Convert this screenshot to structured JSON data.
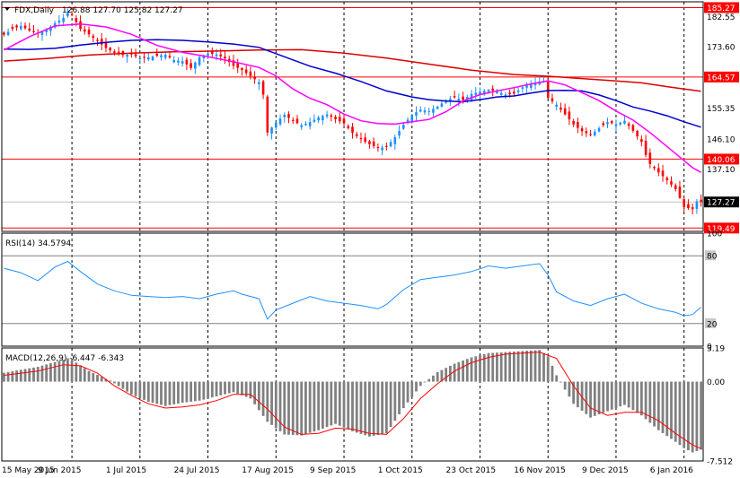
{
  "symbol_label": "FDX,Daily",
  "ohlc_label": "126.88 127.70 125.82 127.27",
  "rsi_label": "RSI(14) 34.5794",
  "macd_label": "MACD(12,26,9) -6.447 -6.343",
  "colors": {
    "up": "#1e90ff",
    "down": "#ff0000",
    "ma_fast": "#ff00ff",
    "ma_mid": "#0000cc",
    "ma_slow": "#dd0000",
    "hline": "#ff0000",
    "rsi": "#1e90ff",
    "macd_hist": "#808080",
    "macd_signal": "#ff0000",
    "grid": "#000000"
  },
  "chart_data": [
    {
      "type": "candlestick",
      "title": "FDX,Daily",
      "ylim": [
        118.5,
        187.0
      ],
      "yticks": [
        182.55,
        173.6,
        164.57,
        155.35,
        146.1,
        137.1
      ],
      "price_levels": [
        185.27,
        164.57,
        140.06,
        119.49
      ],
      "current_price": 127.27,
      "xticks": [
        "15 May 2015",
        "9 Jun 2015",
        "1 Jul 2015",
        "24 Jul 2015",
        "17 Aug 2015",
        "9 Sep 2015",
        "1 Oct 2015",
        "23 Oct 2015",
        "16 Nov 2015",
        "9 Dec 2015",
        "6 Jan 2016"
      ],
      "close_path": [
        [
          0,
          177.2
        ],
        [
          2,
          178.9
        ],
        [
          4,
          179.8
        ],
        [
          6,
          178.4
        ],
        [
          8,
          177.5
        ],
        [
          10,
          178.6
        ],
        [
          12,
          180.6
        ],
        [
          14,
          182.2
        ],
        [
          15,
          183.8
        ],
        [
          16,
          183.0
        ],
        [
          18,
          178.9
        ],
        [
          20,
          177.3
        ],
        [
          22,
          175.3
        ],
        [
          24,
          173.2
        ],
        [
          26,
          171.8
        ],
        [
          28,
          171.1
        ],
        [
          30,
          171.3
        ],
        [
          32,
          170.2
        ],
        [
          34,
          170.4
        ],
        [
          36,
          170.9
        ],
        [
          38,
          171.2
        ],
        [
          40,
          169.6
        ],
        [
          42,
          169.3
        ],
        [
          44,
          167.3
        ],
        [
          46,
          170.5
        ],
        [
          48,
          171.6
        ],
        [
          50,
          171.3
        ],
        [
          52,
          170.1
        ],
        [
          54,
          167.9
        ],
        [
          56,
          166.7
        ],
        [
          58,
          164.8
        ],
        [
          60,
          163.0
        ],
        [
          61,
          159.3
        ],
        [
          62,
          148.0
        ],
        [
          64,
          151.0
        ],
        [
          66,
          153.3
        ],
        [
          68,
          151.4
        ],
        [
          70,
          150.2
        ],
        [
          72,
          151.1
        ],
        [
          74,
          152.5
        ],
        [
          76,
          153.4
        ],
        [
          78,
          152.0
        ],
        [
          80,
          150.7
        ],
        [
          82,
          147.9
        ],
        [
          84,
          146.0
        ],
        [
          86,
          144.5
        ],
        [
          88,
          143.4
        ],
        [
          90,
          143.7
        ],
        [
          92,
          146.6
        ],
        [
          94,
          150.3
        ],
        [
          96,
          153.3
        ],
        [
          98,
          154.8
        ],
        [
          100,
          154.4
        ],
        [
          102,
          155.7
        ],
        [
          104,
          157.6
        ],
        [
          106,
          158.5
        ],
        [
          108,
          157.7
        ],
        [
          110,
          159.5
        ],
        [
          112,
          160.2
        ],
        [
          114,
          160.7
        ],
        [
          116,
          160.3
        ],
        [
          118,
          159.3
        ],
        [
          120,
          159.6
        ],
        [
          122,
          161.5
        ],
        [
          124,
          162.6
        ],
        [
          126,
          163.2
        ],
        [
          127,
          163.4
        ],
        [
          128,
          158.3
        ],
        [
          130,
          156.3
        ],
        [
          132,
          153.4
        ],
        [
          134,
          150.4
        ],
        [
          136,
          148.4
        ],
        [
          138,
          147.2
        ],
        [
          140,
          149.3
        ],
        [
          142,
          151.1
        ],
        [
          144,
          150.5
        ],
        [
          146,
          151.5
        ],
        [
          148,
          148.5
        ],
        [
          150,
          145.2
        ],
        [
          151,
          141.3
        ],
        [
          152,
          138.6
        ],
        [
          154,
          136.1
        ],
        [
          156,
          133.8
        ],
        [
          158,
          131.1
        ],
        [
          160,
          125.8
        ],
        [
          162,
          125.1
        ],
        [
          163,
          127.5
        ],
        [
          164,
          127.27
        ]
      ],
      "ma_fast_path": [
        [
          0,
          172.6
        ],
        [
          6,
          176.6
        ],
        [
          12,
          179.8
        ],
        [
          18,
          180.4
        ],
        [
          24,
          179.5
        ],
        [
          30,
          177.3
        ],
        [
          36,
          174.0
        ],
        [
          42,
          171.9
        ],
        [
          48,
          170.6
        ],
        [
          54,
          169.1
        ],
        [
          60,
          167.4
        ],
        [
          64,
          164.9
        ],
        [
          68,
          161.0
        ],
        [
          72,
          158.2
        ],
        [
          76,
          156.3
        ],
        [
          80,
          153.5
        ],
        [
          84,
          151.5
        ],
        [
          88,
          150.7
        ],
        [
          92,
          150.5
        ],
        [
          96,
          151.2
        ],
        [
          100,
          151.9
        ],
        [
          104,
          154.2
        ],
        [
          108,
          157.4
        ],
        [
          112,
          159.3
        ],
        [
          116,
          160.4
        ],
        [
          120,
          161.4
        ],
        [
          124,
          162.5
        ],
        [
          128,
          163.4
        ],
        [
          132,
          162.2
        ],
        [
          136,
          159.9
        ],
        [
          140,
          157.5
        ],
        [
          144,
          154.4
        ],
        [
          148,
          151.7
        ],
        [
          152,
          148.0
        ],
        [
          156,
          143.8
        ],
        [
          160,
          139.6
        ],
        [
          162,
          137.5
        ],
        [
          164,
          136.1
        ]
      ],
      "ma_mid_path": [
        [
          0,
          172.9
        ],
        [
          6,
          172.8
        ],
        [
          12,
          173.1
        ],
        [
          18,
          174.1
        ],
        [
          24,
          174.9
        ],
        [
          30,
          175.5
        ],
        [
          36,
          175.7
        ],
        [
          42,
          175.5
        ],
        [
          48,
          175.0
        ],
        [
          54,
          174.4
        ],
        [
          60,
          173.4
        ],
        [
          66,
          170.6
        ],
        [
          72,
          167.8
        ],
        [
          78,
          165.7
        ],
        [
          84,
          163.2
        ],
        [
          90,
          160.4
        ],
        [
          96,
          158.6
        ],
        [
          100,
          157.8
        ],
        [
          104,
          157.4
        ],
        [
          108,
          157.2
        ],
        [
          112,
          157.8
        ],
        [
          116,
          158.6
        ],
        [
          120,
          158.9
        ],
        [
          124,
          159.8
        ],
        [
          128,
          160.5
        ],
        [
          132,
          160.6
        ],
        [
          136,
          160.4
        ],
        [
          140,
          159.2
        ],
        [
          144,
          157.5
        ],
        [
          148,
          155.6
        ],
        [
          152,
          154.4
        ],
        [
          156,
          153.0
        ],
        [
          160,
          151.2
        ],
        [
          164,
          149.6
        ]
      ],
      "ma_slow_path": [
        [
          0,
          169.3
        ],
        [
          10,
          170.1
        ],
        [
          20,
          171.1
        ],
        [
          30,
          171.7
        ],
        [
          40,
          172.1
        ],
        [
          50,
          172.3
        ],
        [
          60,
          172.6
        ],
        [
          70,
          172.7
        ],
        [
          80,
          171.7
        ],
        [
          90,
          170.2
        ],
        [
          100,
          168.4
        ],
        [
          110,
          166.6
        ],
        [
          120,
          165.3
        ],
        [
          128,
          164.8
        ],
        [
          136,
          164.1
        ],
        [
          144,
          163.4
        ],
        [
          150,
          162.8
        ],
        [
          156,
          161.7
        ],
        [
          160,
          161.0
        ],
        [
          164,
          160.3
        ]
      ]
    },
    {
      "type": "line",
      "title": "RSI(14) 34.5794",
      "ylim": [
        0,
        100
      ],
      "yticks": [
        100,
        80,
        20,
        0
      ],
      "levels": [
        80,
        20
      ],
      "values_path": [
        [
          0,
          69
        ],
        [
          4,
          65
        ],
        [
          8,
          58
        ],
        [
          12,
          70
        ],
        [
          15,
          75
        ],
        [
          18,
          66
        ],
        [
          22,
          55
        ],
        [
          26,
          49
        ],
        [
          30,
          45
        ],
        [
          34,
          44
        ],
        [
          38,
          43
        ],
        [
          42,
          44
        ],
        [
          46,
          42
        ],
        [
          50,
          46
        ],
        [
          54,
          49
        ],
        [
          56,
          46
        ],
        [
          60,
          42
        ],
        [
          62,
          24
        ],
        [
          64,
          32
        ],
        [
          68,
          38
        ],
        [
          72,
          44
        ],
        [
          76,
          40
        ],
        [
          80,
          38
        ],
        [
          84,
          36
        ],
        [
          88,
          33
        ],
        [
          90,
          37
        ],
        [
          94,
          50
        ],
        [
          98,
          59
        ],
        [
          102,
          61
        ],
        [
          106,
          63
        ],
        [
          110,
          66
        ],
        [
          114,
          71
        ],
        [
          118,
          69
        ],
        [
          122,
          71
        ],
        [
          126,
          73
        ],
        [
          128,
          63
        ],
        [
          130,
          48
        ],
        [
          134,
          40
        ],
        [
          138,
          36
        ],
        [
          142,
          42
        ],
        [
          146,
          46
        ],
        [
          150,
          38
        ],
        [
          154,
          33
        ],
        [
          158,
          30
        ],
        [
          160,
          27
        ],
        [
          162,
          28
        ],
        [
          164,
          34.58
        ]
      ]
    },
    {
      "type": "bar",
      "title": "MACD(12,26,9) -6.447 -6.343",
      "ylim": [
        -7.512,
        3.19
      ],
      "yticks": [
        3.19,
        0.0,
        -7.512
      ],
      "histogram_path": [
        [
          0,
          0.85
        ],
        [
          8,
          1.4
        ],
        [
          15,
          2.2
        ],
        [
          17,
          1.8
        ],
        [
          20,
          1.0
        ],
        [
          25,
          0.1
        ],
        [
          30,
          -1.2
        ],
        [
          34,
          -1.9
        ],
        [
          38,
          -2.3
        ],
        [
          42,
          -2.0
        ],
        [
          46,
          -1.8
        ],
        [
          50,
          -1.4
        ],
        [
          54,
          -1.0
        ],
        [
          58,
          -1.6
        ],
        [
          62,
          -3.8
        ],
        [
          66,
          -5.0
        ],
        [
          70,
          -5.1
        ],
        [
          74,
          -4.6
        ],
        [
          78,
          -4.0
        ],
        [
          82,
          -4.7
        ],
        [
          86,
          -5.2
        ],
        [
          90,
          -4.9
        ],
        [
          94,
          -2.5
        ],
        [
          98,
          -0.4
        ],
        [
          102,
          0.9
        ],
        [
          106,
          1.7
        ],
        [
          110,
          2.3
        ],
        [
          114,
          2.7
        ],
        [
          118,
          2.8
        ],
        [
          122,
          2.9
        ],
        [
          126,
          3.0
        ],
        [
          128,
          2.4
        ],
        [
          130,
          0.6
        ],
        [
          134,
          -2.1
        ],
        [
          138,
          -3.4
        ],
        [
          142,
          -2.8
        ],
        [
          146,
          -2.2
        ],
        [
          150,
          -3.2
        ],
        [
          154,
          -4.6
        ],
        [
          158,
          -5.7
        ],
        [
          160,
          -6.3
        ],
        [
          162,
          -6.7
        ],
        [
          164,
          -6.447
        ]
      ],
      "signal_path": [
        [
          0,
          0.6
        ],
        [
          8,
          1.0
        ],
        [
          14,
          1.6
        ],
        [
          18,
          1.5
        ],
        [
          22,
          0.8
        ],
        [
          26,
          -0.4
        ],
        [
          30,
          -1.3
        ],
        [
          34,
          -2.1
        ],
        [
          38,
          -2.5
        ],
        [
          42,
          -2.4
        ],
        [
          46,
          -2.2
        ],
        [
          50,
          -1.8
        ],
        [
          54,
          -1.2
        ],
        [
          58,
          -1.2
        ],
        [
          62,
          -2.6
        ],
        [
          66,
          -4.3
        ],
        [
          70,
          -5.0
        ],
        [
          74,
          -4.9
        ],
        [
          78,
          -4.4
        ],
        [
          82,
          -4.5
        ],
        [
          86,
          -4.9
        ],
        [
          90,
          -5.0
        ],
        [
          94,
          -3.5
        ],
        [
          98,
          -1.6
        ],
        [
          102,
          -0.2
        ],
        [
          106,
          1.0
        ],
        [
          110,
          1.8
        ],
        [
          114,
          2.3
        ],
        [
          118,
          2.6
        ],
        [
          122,
          2.7
        ],
        [
          126,
          2.8
        ],
        [
          130,
          2.2
        ],
        [
          134,
          -0.4
        ],
        [
          138,
          -2.5
        ],
        [
          142,
          -3.2
        ],
        [
          146,
          -2.9
        ],
        [
          150,
          -2.9
        ],
        [
          154,
          -3.7
        ],
        [
          158,
          -4.9
        ],
        [
          162,
          -6.0
        ],
        [
          164,
          -6.343
        ]
      ]
    }
  ]
}
